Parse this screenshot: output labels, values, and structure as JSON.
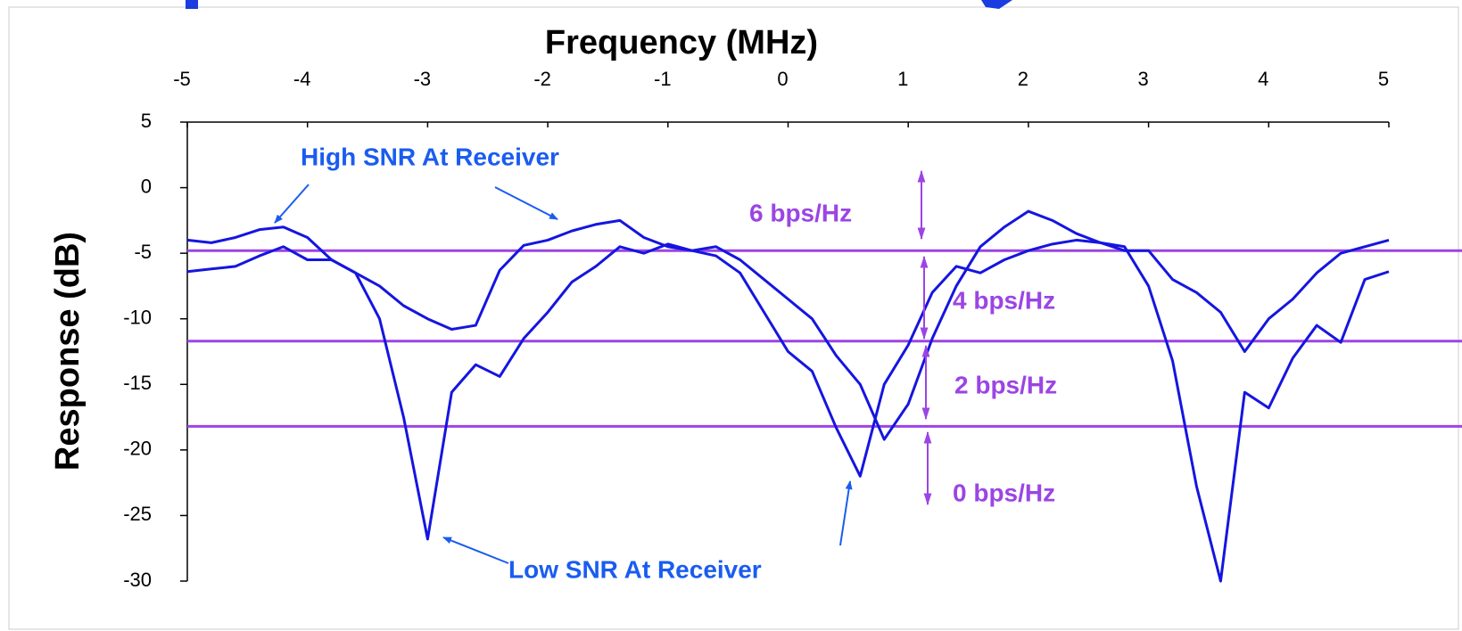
{
  "chart_data": {
    "type": "line",
    "xlabel": "Frequency (MHz)",
    "ylabel": "Response (dB)",
    "x": [
      -5,
      -4.8,
      -4.6,
      -4.4,
      -4.2,
      -4,
      -3.8,
      -3.6,
      -3.4,
      -3.2,
      -3,
      -2.8,
      -2.6,
      -2.4,
      -2.2,
      -2,
      -1.8,
      -1.6,
      -1.4,
      -1.2,
      -1,
      -0.8,
      -0.6,
      -0.4,
      -0.2,
      0,
      0.2,
      0.4,
      0.6,
      0.8,
      1,
      1.2,
      1.4,
      1.6,
      1.8,
      2,
      2.2,
      2.4,
      2.6,
      2.8,
      3,
      3.2,
      3.4,
      3.6,
      3.8,
      4,
      4.2,
      4.4,
      4.6,
      4.8,
      5
    ],
    "series": [
      {
        "color": "#1515e0",
        "values": [
          -4.0,
          -4.2,
          -3.8,
          -3.2,
          -3.0,
          -3.8,
          -5.5,
          -6.5,
          -7.5,
          -9.0,
          -10.0,
          -10.8,
          -10.5,
          -6.3,
          -4.4,
          -4.0,
          -3.3,
          -2.8,
          -2.5,
          -3.8,
          -4.5,
          -4.8,
          -4.5,
          -5.5,
          -7.0,
          -8.5,
          -10.0,
          -12.8,
          -15.0,
          -19.2,
          -16.5,
          -11.5,
          -7.5,
          -4.5,
          -3.0,
          -1.8,
          -2.5,
          -3.5,
          -4.2,
          -4.8,
          -4.8,
          -7.0,
          -8.0,
          -9.5,
          -12.5,
          -10.0,
          -8.5,
          -6.5,
          -5.0,
          -4.5,
          -4.0
        ]
      },
      {
        "color": "#1515e0",
        "values": [
          -6.4,
          -6.2,
          -6.0,
          -5.2,
          -4.5,
          -5.5,
          -5.5,
          -6.5,
          -10.0,
          -17.5,
          -26.8,
          -15.6,
          -13.5,
          -14.4,
          -11.5,
          -9.5,
          -7.2,
          -6.0,
          -4.5,
          -5.0,
          -4.3,
          -4.8,
          -5.2,
          -6.5,
          -9.5,
          -12.5,
          -14.0,
          -18.3,
          -22.0,
          -15.0,
          -12.0,
          -8.0,
          -6.0,
          -6.5,
          -5.5,
          -4.8,
          -4.3,
          -4.0,
          -4.2,
          -4.5,
          -7.5,
          -13.2,
          -22.8,
          -30.0,
          -15.6,
          -16.8,
          -13.0,
          -10.5,
          -11.8,
          -7.0,
          -6.4
        ]
      }
    ],
    "xlim": [
      -5,
      5
    ],
    "xticks": [
      -5,
      -4,
      -3,
      -2,
      -1,
      0,
      1,
      2,
      3,
      4,
      5
    ],
    "ylim": [
      -30,
      5
    ],
    "yticks": [
      5,
      0,
      -5,
      -10,
      -15,
      -20,
      -25,
      -30
    ],
    "thresholds": {
      "color": "#9b45e4",
      "values": [
        -4.8,
        -11.7,
        -18.2
      ]
    },
    "annotations": [
      "High SNR At Receiver",
      "Low SNR At Receiver",
      "6 bps/Hz",
      "4 bps/Hz",
      "2 bps/Hz",
      "0 bps/Hz"
    ]
  }
}
